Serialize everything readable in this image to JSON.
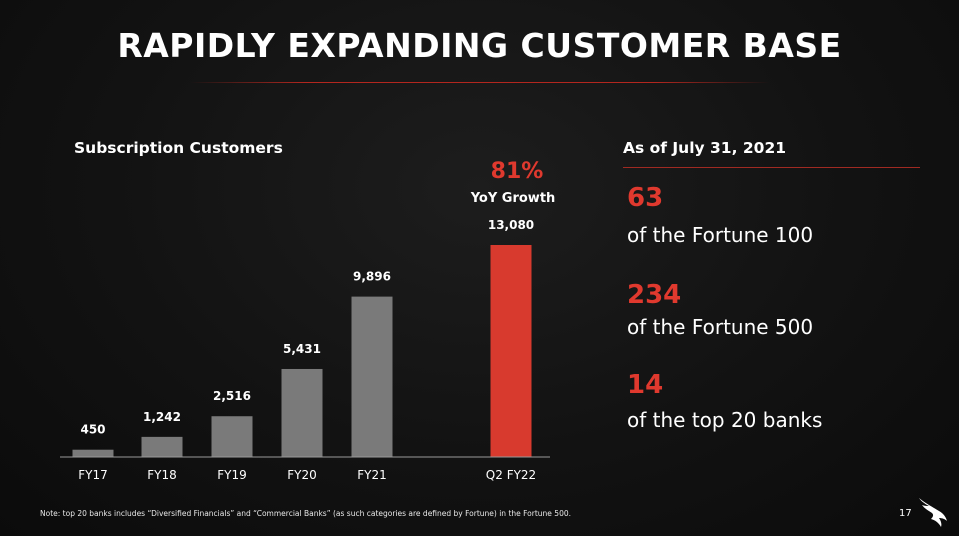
{
  "slide": {
    "title": "RAPIDLY EXPANDING CUSTOMER BASE",
    "page_number": "17",
    "note": "Note: top 20 banks includes “Diversified Financials” and “Commercial Banks” (as such categories are defined by Fortune) in the Fortune 500."
  },
  "chart_label": "Subscription Customers",
  "growth": {
    "value": "81%",
    "label": "YoY Growth"
  },
  "chart_data": {
    "type": "bar",
    "title": "Subscription Customers",
    "categories": [
      "FY17",
      "FY18",
      "FY19",
      "FY20",
      "FY21",
      "Q2 FY22"
    ],
    "values": [
      450,
      1242,
      2516,
      5431,
      9896,
      13080
    ],
    "value_labels": [
      "450",
      "1,242",
      "2,516",
      "5,431",
      "9,896",
      "13,080"
    ],
    "colors": {
      "default": "#7a7a7a",
      "highlight": "#d83a2e"
    },
    "highlight_index": 5,
    "ylim": [
      0,
      13080
    ]
  },
  "stats": {
    "header": "As of July 31, 2021",
    "items": [
      {
        "number": "63",
        "text": "of the Fortune 100"
      },
      {
        "number": "234",
        "text": "of the Fortune 500"
      },
      {
        "number": "14",
        "text": "of the top 20 banks"
      }
    ]
  }
}
